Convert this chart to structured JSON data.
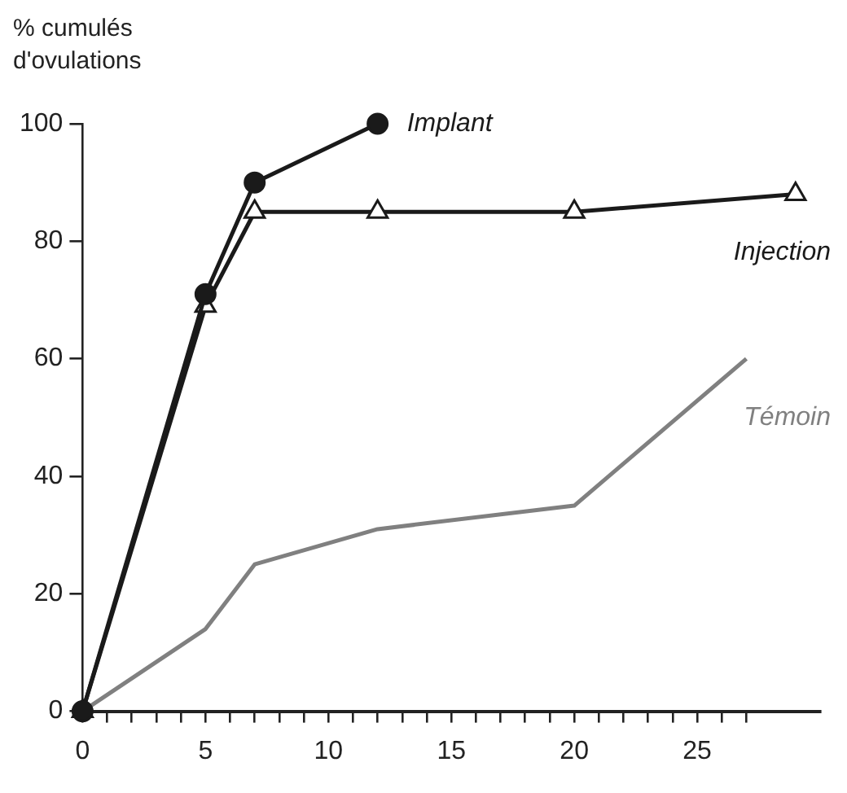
{
  "chart_data": {
    "type": "line",
    "ylabel": "% cumulés d'ovulations",
    "xlim": [
      0,
      30
    ],
    "ylim": [
      0,
      100
    ],
    "xticks": [
      0,
      {
        "value": 1,
        "label": null
      },
      {
        "value": 2,
        "label": null
      },
      {
        "value": 3,
        "label": null
      },
      {
        "value": 4,
        "label": null
      },
      5,
      {
        "value": 6,
        "label": null
      },
      {
        "value": 7,
        "label": null
      },
      {
        "value": 8,
        "label": null
      },
      {
        "value": 9,
        "label": null
      },
      10,
      {
        "value": 11,
        "label": null
      },
      {
        "value": 12,
        "label": null
      },
      {
        "value": 13,
        "label": null
      },
      {
        "value": 14,
        "label": null
      },
      15,
      {
        "value": 16,
        "label": null
      },
      {
        "value": 17,
        "label": null
      },
      {
        "value": 18,
        "label": null
      },
      {
        "value": 19,
        "label": null
      },
      20,
      {
        "value": 21,
        "label": null
      },
      {
        "value": 22,
        "label": null
      },
      {
        "value": 23,
        "label": null
      },
      {
        "value": 24,
        "label": null
      },
      25,
      {
        "value": 26,
        "label": null
      },
      {
        "value": 27,
        "label": null
      }
    ],
    "yticks": [
      0,
      20,
      40,
      60,
      80,
      100
    ],
    "grid": false,
    "legend": false,
    "series": [
      {
        "name": "Implant",
        "color": "#1a1a1a",
        "marker": "circle",
        "x": [
          0,
          5,
          7,
          12
        ],
        "values": [
          0,
          71,
          90,
          100
        ]
      },
      {
        "name": "Injection",
        "color": "#1a1a1a",
        "marker": "triangle",
        "x": [
          0,
          5,
          7,
          12,
          20,
          29
        ],
        "values": [
          0,
          69,
          85,
          85,
          85,
          88
        ]
      },
      {
        "name": "Témoin",
        "color": "#808080",
        "marker": "none",
        "x": [
          0,
          5,
          7,
          12,
          20,
          27
        ],
        "values": [
          0,
          14,
          25,
          31,
          35,
          60
        ]
      }
    ]
  }
}
